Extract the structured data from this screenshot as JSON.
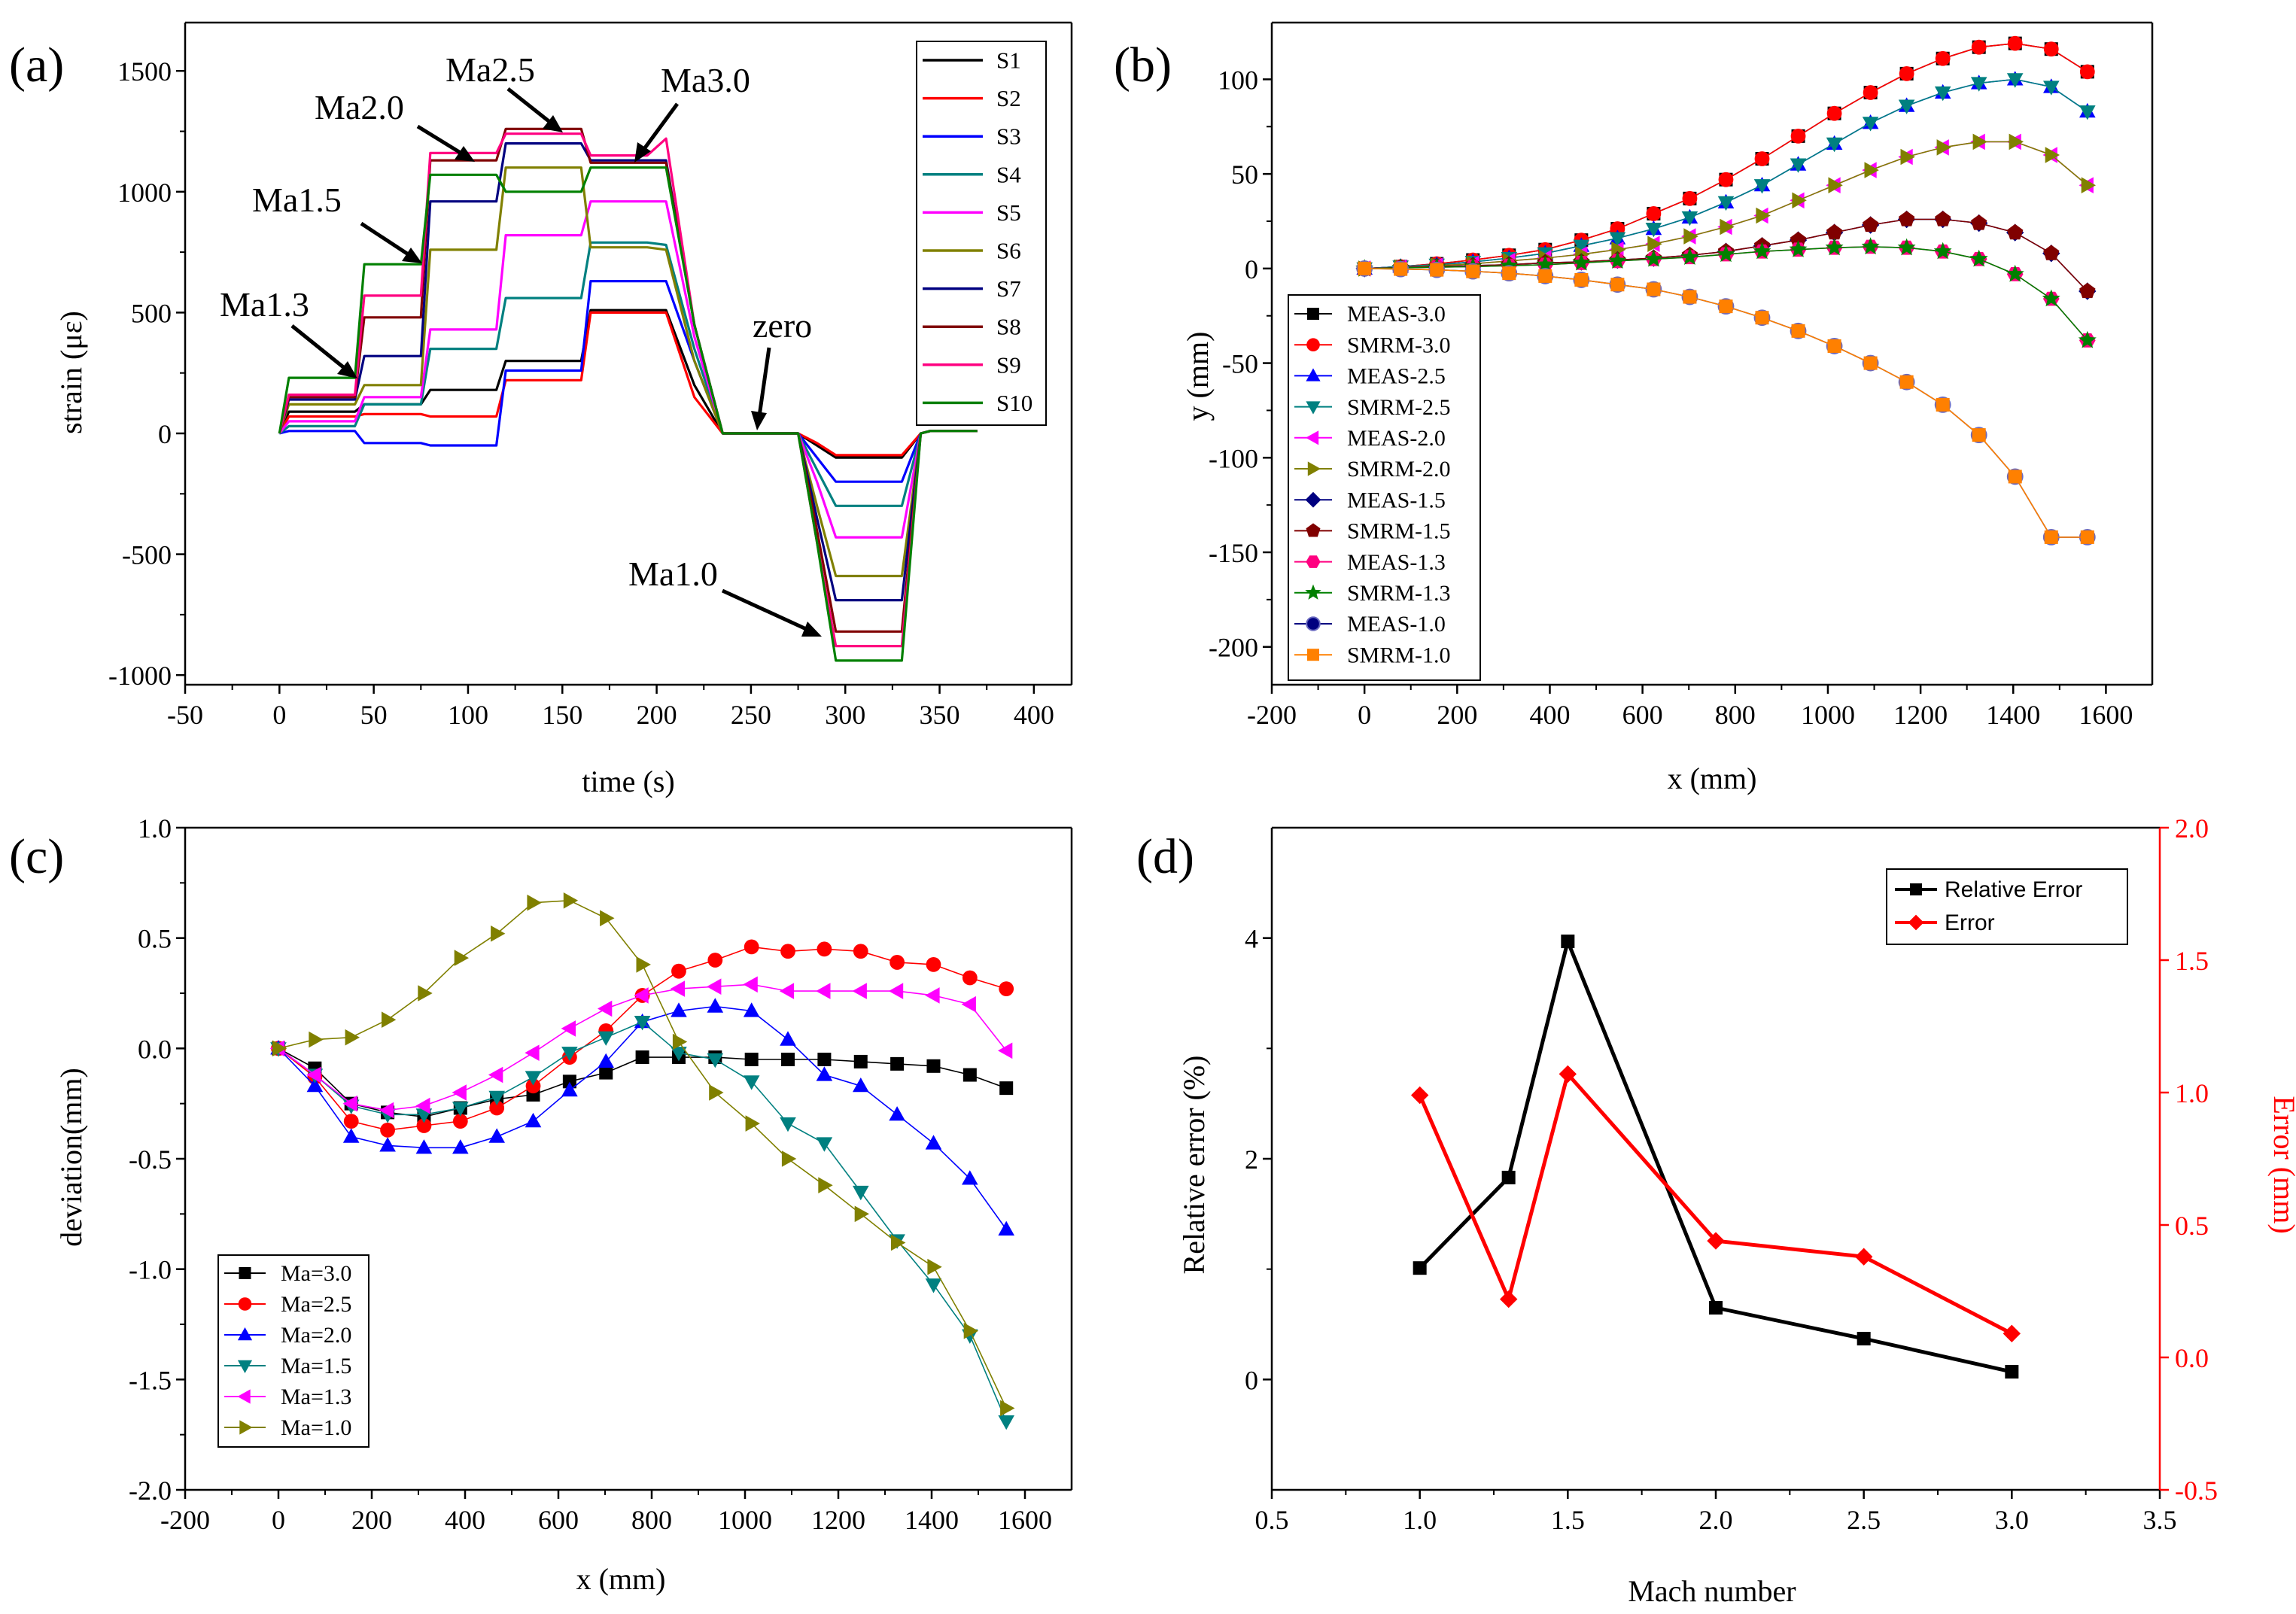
{
  "chart_data": [
    {
      "panel_label": "(a)",
      "type": "line",
      "xlabel": "time (s)",
      "ylabel": "strain (με)",
      "xlim": [
        -50,
        420
      ],
      "ylim": [
        -1040,
        1700
      ],
      "xticks": [
        -50,
        0,
        50,
        100,
        150,
        200,
        250,
        300,
        350,
        400
      ],
      "yticks": [
        -1000,
        -500,
        0,
        500,
        1000,
        1500
      ],
      "legend": "top-right",
      "x": [
        0,
        5,
        40,
        45,
        75,
        80,
        115,
        120,
        160,
        165,
        195,
        205,
        220,
        235,
        270,
        275,
        285,
        295,
        330,
        340,
        345,
        370
      ],
      "series": [
        {
          "name": "S1",
          "color": "#000000",
          "values": [
            0,
            90,
            90,
            120,
            120,
            180,
            180,
            300,
            300,
            510,
            510,
            510,
            200,
            0,
            0,
            0,
            -50,
            -100,
            -100,
            0,
            10,
            10
          ]
        },
        {
          "name": "S2",
          "color": "#ff0000",
          "values": [
            0,
            70,
            70,
            80,
            80,
            70,
            70,
            220,
            220,
            500,
            500,
            500,
            150,
            0,
            0,
            0,
            -40,
            -90,
            -90,
            0,
            10,
            10
          ]
        },
        {
          "name": "S3",
          "color": "#0000ff",
          "values": [
            0,
            10,
            10,
            -40,
            -40,
            -50,
            -50,
            260,
            260,
            630,
            630,
            630,
            300,
            0,
            0,
            0,
            -100,
            -200,
            -200,
            0,
            10,
            10
          ]
        },
        {
          "name": "S4",
          "color": "#008080",
          "values": [
            0,
            30,
            30,
            120,
            120,
            350,
            350,
            560,
            560,
            790,
            790,
            780,
            350,
            0,
            0,
            0,
            -150,
            -300,
            -300,
            0,
            10,
            10
          ]
        },
        {
          "name": "S5",
          "color": "#ff00ff",
          "values": [
            0,
            50,
            50,
            150,
            150,
            430,
            430,
            820,
            820,
            960,
            960,
            960,
            400,
            0,
            0,
            0,
            -200,
            -430,
            -430,
            0,
            10,
            10
          ]
        },
        {
          "name": "S6",
          "color": "#808000",
          "values": [
            0,
            120,
            120,
            200,
            200,
            760,
            760,
            1100,
            1100,
            770,
            770,
            760,
            300,
            0,
            0,
            0,
            -300,
            -590,
            -590,
            0,
            10,
            10
          ]
        },
        {
          "name": "S7",
          "color": "#000080",
          "values": [
            0,
            140,
            140,
            320,
            320,
            960,
            960,
            1200,
            1200,
            1130,
            1130,
            1130,
            450,
            0,
            0,
            0,
            -350,
            -690,
            -690,
            0,
            10,
            10
          ]
        },
        {
          "name": "S8",
          "color": "#800000",
          "values": [
            0,
            150,
            150,
            480,
            480,
            1130,
            1130,
            1260,
            1260,
            1120,
            1120,
            1120,
            450,
            0,
            0,
            0,
            -400,
            -820,
            -820,
            0,
            10,
            10
          ]
        },
        {
          "name": "S9",
          "color": "#ff0080",
          "values": [
            0,
            160,
            160,
            570,
            570,
            1160,
            1160,
            1240,
            1240,
            1150,
            1150,
            1220,
            450,
            0,
            0,
            0,
            -450,
            -880,
            -880,
            0,
            10,
            10
          ]
        },
        {
          "name": "S10",
          "color": "#008000",
          "values": [
            0,
            230,
            230,
            700,
            700,
            1070,
            1070,
            1000,
            1000,
            1100,
            1100,
            1100,
            450,
            0,
            0,
            0,
            -450,
            -940,
            -940,
            0,
            10,
            10
          ]
        }
      ],
      "annotations": [
        {
          "text": "Ma1.3",
          "x": 40,
          "y": 230
        },
        {
          "text": "Ma1.5",
          "x": 75,
          "y": 700
        },
        {
          "text": "Ma2.0",
          "x": 105,
          "y": 1150
        },
        {
          "text": "Ma2.5",
          "x": 155,
          "y": 1250
        },
        {
          "text": "Ma3.0",
          "x": 190,
          "y": 1120
        },
        {
          "text": "zero",
          "x": 255,
          "y": 0
        },
        {
          "text": "Ma1.0",
          "x": 300,
          "y": -850
        }
      ]
    },
    {
      "panel_label": "(b)",
      "type": "scatter",
      "xlabel": "x (mm)",
      "ylabel": "y (mm)",
      "xlim": [
        -200,
        1700
      ],
      "ylim": [
        -220,
        130
      ],
      "xticks": [
        -200,
        0,
        200,
        400,
        600,
        800,
        1000,
        1200,
        1400,
        1600
      ],
      "yticks": [
        -200,
        -150,
        -100,
        -50,
        0,
        50,
        100
      ],
      "legend": "bottom-left",
      "x": [
        0,
        78,
        156,
        234,
        312,
        390,
        468,
        546,
        624,
        702,
        780,
        858,
        936,
        1014,
        1092,
        1170,
        1248,
        1326,
        1404,
        1482,
        1560
      ],
      "series": [
        {
          "name": "MEAS-3.0",
          "color": "#000000",
          "marker": "square",
          "values": [
            0,
            1,
            2.5,
            4.5,
            7,
            10,
            15,
            21,
            29,
            37,
            47,
            58,
            70,
            82,
            93,
            103,
            111,
            117,
            119,
            116,
            104
          ]
        },
        {
          "name": "SMRM-3.0",
          "color": "#ff0000",
          "marker": "circle",
          "values": [
            0,
            1,
            2.5,
            4.5,
            7,
            10,
            15,
            21,
            29,
            37,
            47,
            58,
            70,
            82,
            93,
            103,
            111,
            117,
            119,
            116,
            104
          ]
        },
        {
          "name": "MEAS-2.5",
          "color": "#0000ff",
          "marker": "triangle-up",
          "values": [
            0,
            1,
            2,
            3.5,
            5.5,
            8,
            12,
            16,
            21,
            27,
            35,
            44,
            55,
            66,
            77,
            86,
            93,
            98,
            100,
            96,
            83
          ]
        },
        {
          "name": "SMRM-2.5",
          "color": "#008080",
          "marker": "triangle-down",
          "values": [
            0,
            1,
            2,
            3.5,
            5.5,
            8,
            12,
            16,
            21,
            27,
            35,
            44,
            55,
            66,
            77,
            86,
            93,
            98,
            100,
            96,
            83
          ]
        },
        {
          "name": "MEAS-2.0",
          "color": "#ff00ff",
          "marker": "triangle-left",
          "values": [
            0,
            0.5,
            1.5,
            2.5,
            4,
            5.5,
            7.5,
            10,
            13,
            17,
            22,
            28,
            36,
            44,
            52,
            59,
            64,
            67,
            67,
            60,
            44
          ]
        },
        {
          "name": "SMRM-2.0",
          "color": "#808000",
          "marker": "triangle-right",
          "values": [
            0,
            0.5,
            1.5,
            2.5,
            4,
            5.5,
            7.5,
            10,
            13,
            17,
            22,
            28,
            36,
            44,
            52,
            59,
            64,
            67,
            67,
            60,
            44
          ]
        },
        {
          "name": "MEAS-1.5",
          "color": "#000080",
          "marker": "diamond",
          "values": [
            0,
            0.5,
            1,
            1.5,
            2,
            3,
            3.5,
            4.5,
            5.5,
            7,
            9,
            12,
            15,
            19,
            23,
            26,
            26,
            24,
            19,
            8,
            -12
          ]
        },
        {
          "name": "SMRM-1.5",
          "color": "#800000",
          "marker": "pentagon",
          "values": [
            0,
            0.5,
            1,
            1.5,
            2,
            3,
            3.5,
            4.5,
            5.5,
            7,
            9,
            12,
            15,
            19,
            23,
            26,
            26,
            24,
            19,
            8,
            -12
          ]
        },
        {
          "name": "MEAS-1.3",
          "color": "#ff0080",
          "marker": "hexagon",
          "values": [
            0,
            0.3,
            0.7,
            1,
            1.5,
            2,
            3,
            4,
            5,
            6,
            7.5,
            9,
            10,
            11,
            11.5,
            11,
            9,
            5,
            -3,
            -16,
            -38
          ]
        },
        {
          "name": "SMRM-1.3",
          "color": "#008000",
          "marker": "star",
          "values": [
            0,
            0.3,
            0.7,
            1,
            1.5,
            2,
            3,
            4,
            5,
            6,
            7.5,
            9,
            10,
            11,
            11.5,
            11,
            9,
            5,
            -3,
            -16,
            -38
          ]
        },
        {
          "name": "MEAS-1.0",
          "color": "#000080",
          "marker": "sphere",
          "values": [
            0,
            -0.3,
            -0.7,
            -1.5,
            -2.5,
            -4,
            -6,
            -8.5,
            -11,
            -15,
            -20,
            -26,
            -33,
            -41,
            -50,
            -60,
            -72,
            -88,
            -110,
            -142,
            -142
          ]
        },
        {
          "name": "SMRM-1.0",
          "color": "#ff8000",
          "marker": "square",
          "values": [
            0,
            -0.3,
            -0.7,
            -1.5,
            -2.5,
            -4,
            -6,
            -8.5,
            -11,
            -15,
            -20,
            -26,
            -33,
            -41,
            -50,
            -60,
            -72,
            -88,
            -110,
            -142,
            -142
          ]
        }
      ]
    },
    {
      "panel_label": "(c)",
      "type": "scatter",
      "xlabel": "x (mm)",
      "ylabel": "deviation(mm)",
      "xlim": [
        -200,
        1700
      ],
      "ylim": [
        -2.0,
        1.0
      ],
      "xticks": [
        -200,
        0,
        200,
        400,
        600,
        800,
        1000,
        1200,
        1400,
        1600
      ],
      "yticks": [
        -2.0,
        -1.5,
        -1.0,
        -0.5,
        0.0,
        0.5,
        1.0
      ],
      "legend": "bottom-left",
      "x": [
        0,
        78,
        156,
        234,
        312,
        390,
        468,
        546,
        624,
        702,
        780,
        858,
        936,
        1014,
        1092,
        1170,
        1248,
        1326,
        1404,
        1482,
        1560
      ],
      "series": [
        {
          "name": "Ma=3.0",
          "color": "#000000",
          "marker": "square",
          "values": [
            0,
            -0.09,
            -0.25,
            -0.29,
            -0.31,
            -0.27,
            -0.23,
            -0.21,
            -0.15,
            -0.11,
            -0.04,
            -0.04,
            -0.04,
            -0.05,
            -0.05,
            -0.05,
            -0.06,
            -0.07,
            -0.08,
            -0.12,
            -0.18
          ]
        },
        {
          "name": "Ma=2.5",
          "color": "#ff0000",
          "marker": "circle",
          "values": [
            0,
            -0.13,
            -0.33,
            -0.37,
            -0.35,
            -0.33,
            -0.27,
            -0.17,
            -0.04,
            0.08,
            0.24,
            0.35,
            0.4,
            0.46,
            0.44,
            0.45,
            0.44,
            0.39,
            0.38,
            0.32,
            0.27
          ]
        },
        {
          "name": "Ma=2.0",
          "color": "#0000ff",
          "marker": "triangle-up",
          "values": [
            0,
            -0.17,
            -0.4,
            -0.44,
            -0.45,
            -0.45,
            -0.4,
            -0.33,
            -0.19,
            -0.06,
            0.12,
            0.17,
            0.19,
            0.17,
            0.04,
            -0.12,
            -0.17,
            -0.3,
            -0.43,
            -0.59,
            -0.82
          ]
        },
        {
          "name": "Ma=1.5",
          "color": "#008080",
          "marker": "triangle-down",
          "values": [
            0,
            -0.12,
            -0.26,
            -0.3,
            -0.3,
            -0.27,
            -0.22,
            -0.13,
            -0.02,
            0.05,
            0.12,
            -0.02,
            -0.05,
            -0.15,
            -0.34,
            -0.43,
            -0.65,
            -0.87,
            -1.07,
            -1.3,
            -1.69
          ]
        },
        {
          "name": "Ma=1.3",
          "color": "#ff00ff",
          "marker": "triangle-left",
          "values": [
            0,
            -0.12,
            -0.25,
            -0.28,
            -0.26,
            -0.2,
            -0.12,
            -0.02,
            0.09,
            0.18,
            0.24,
            0.27,
            0.28,
            0.29,
            0.26,
            0.26,
            0.26,
            0.26,
            0.24,
            0.2,
            -0.01
          ]
        },
        {
          "name": "Ma=1.0",
          "color": "#808000",
          "marker": "triangle-right",
          "values": [
            0,
            0.04,
            0.05,
            0.13,
            0.25,
            0.41,
            0.52,
            0.66,
            0.67,
            0.59,
            0.38,
            0.03,
            -0.2,
            -0.34,
            -0.5,
            -0.62,
            -0.75,
            -0.88,
            -0.99,
            -1.28,
            -1.63
          ]
        }
      ]
    },
    {
      "panel_label": "(d)",
      "type": "line",
      "xlabel": "Mach number",
      "ylabel": "Relative error (%)",
      "y2label": "Error (mm)",
      "xlim": [
        0.5,
        3.5
      ],
      "ylim": [
        -1.0,
        5.0
      ],
      "y2lim": [
        -0.5,
        2.0
      ],
      "xticks": [
        0.5,
        1.0,
        1.5,
        2.0,
        2.5,
        3.0,
        3.5
      ],
      "yticks": [
        0,
        2,
        4
      ],
      "y2ticks": [
        -0.5,
        0.0,
        0.5,
        1.0,
        1.5,
        2.0
      ],
      "legend": "top-right",
      "x": [
        1.0,
        1.3,
        1.5,
        2.0,
        2.5,
        3.0
      ],
      "series": [
        {
          "name": "Relative Error",
          "axis": "left",
          "color": "#000000",
          "marker": "square",
          "values": [
            1.01,
            1.83,
            3.97,
            0.65,
            0.37,
            0.07
          ]
        },
        {
          "name": "Error",
          "axis": "right",
          "color": "#ff0000",
          "marker": "diamond",
          "values": [
            0.99,
            0.22,
            1.07,
            0.44,
            0.38,
            0.09
          ]
        }
      ]
    }
  ]
}
